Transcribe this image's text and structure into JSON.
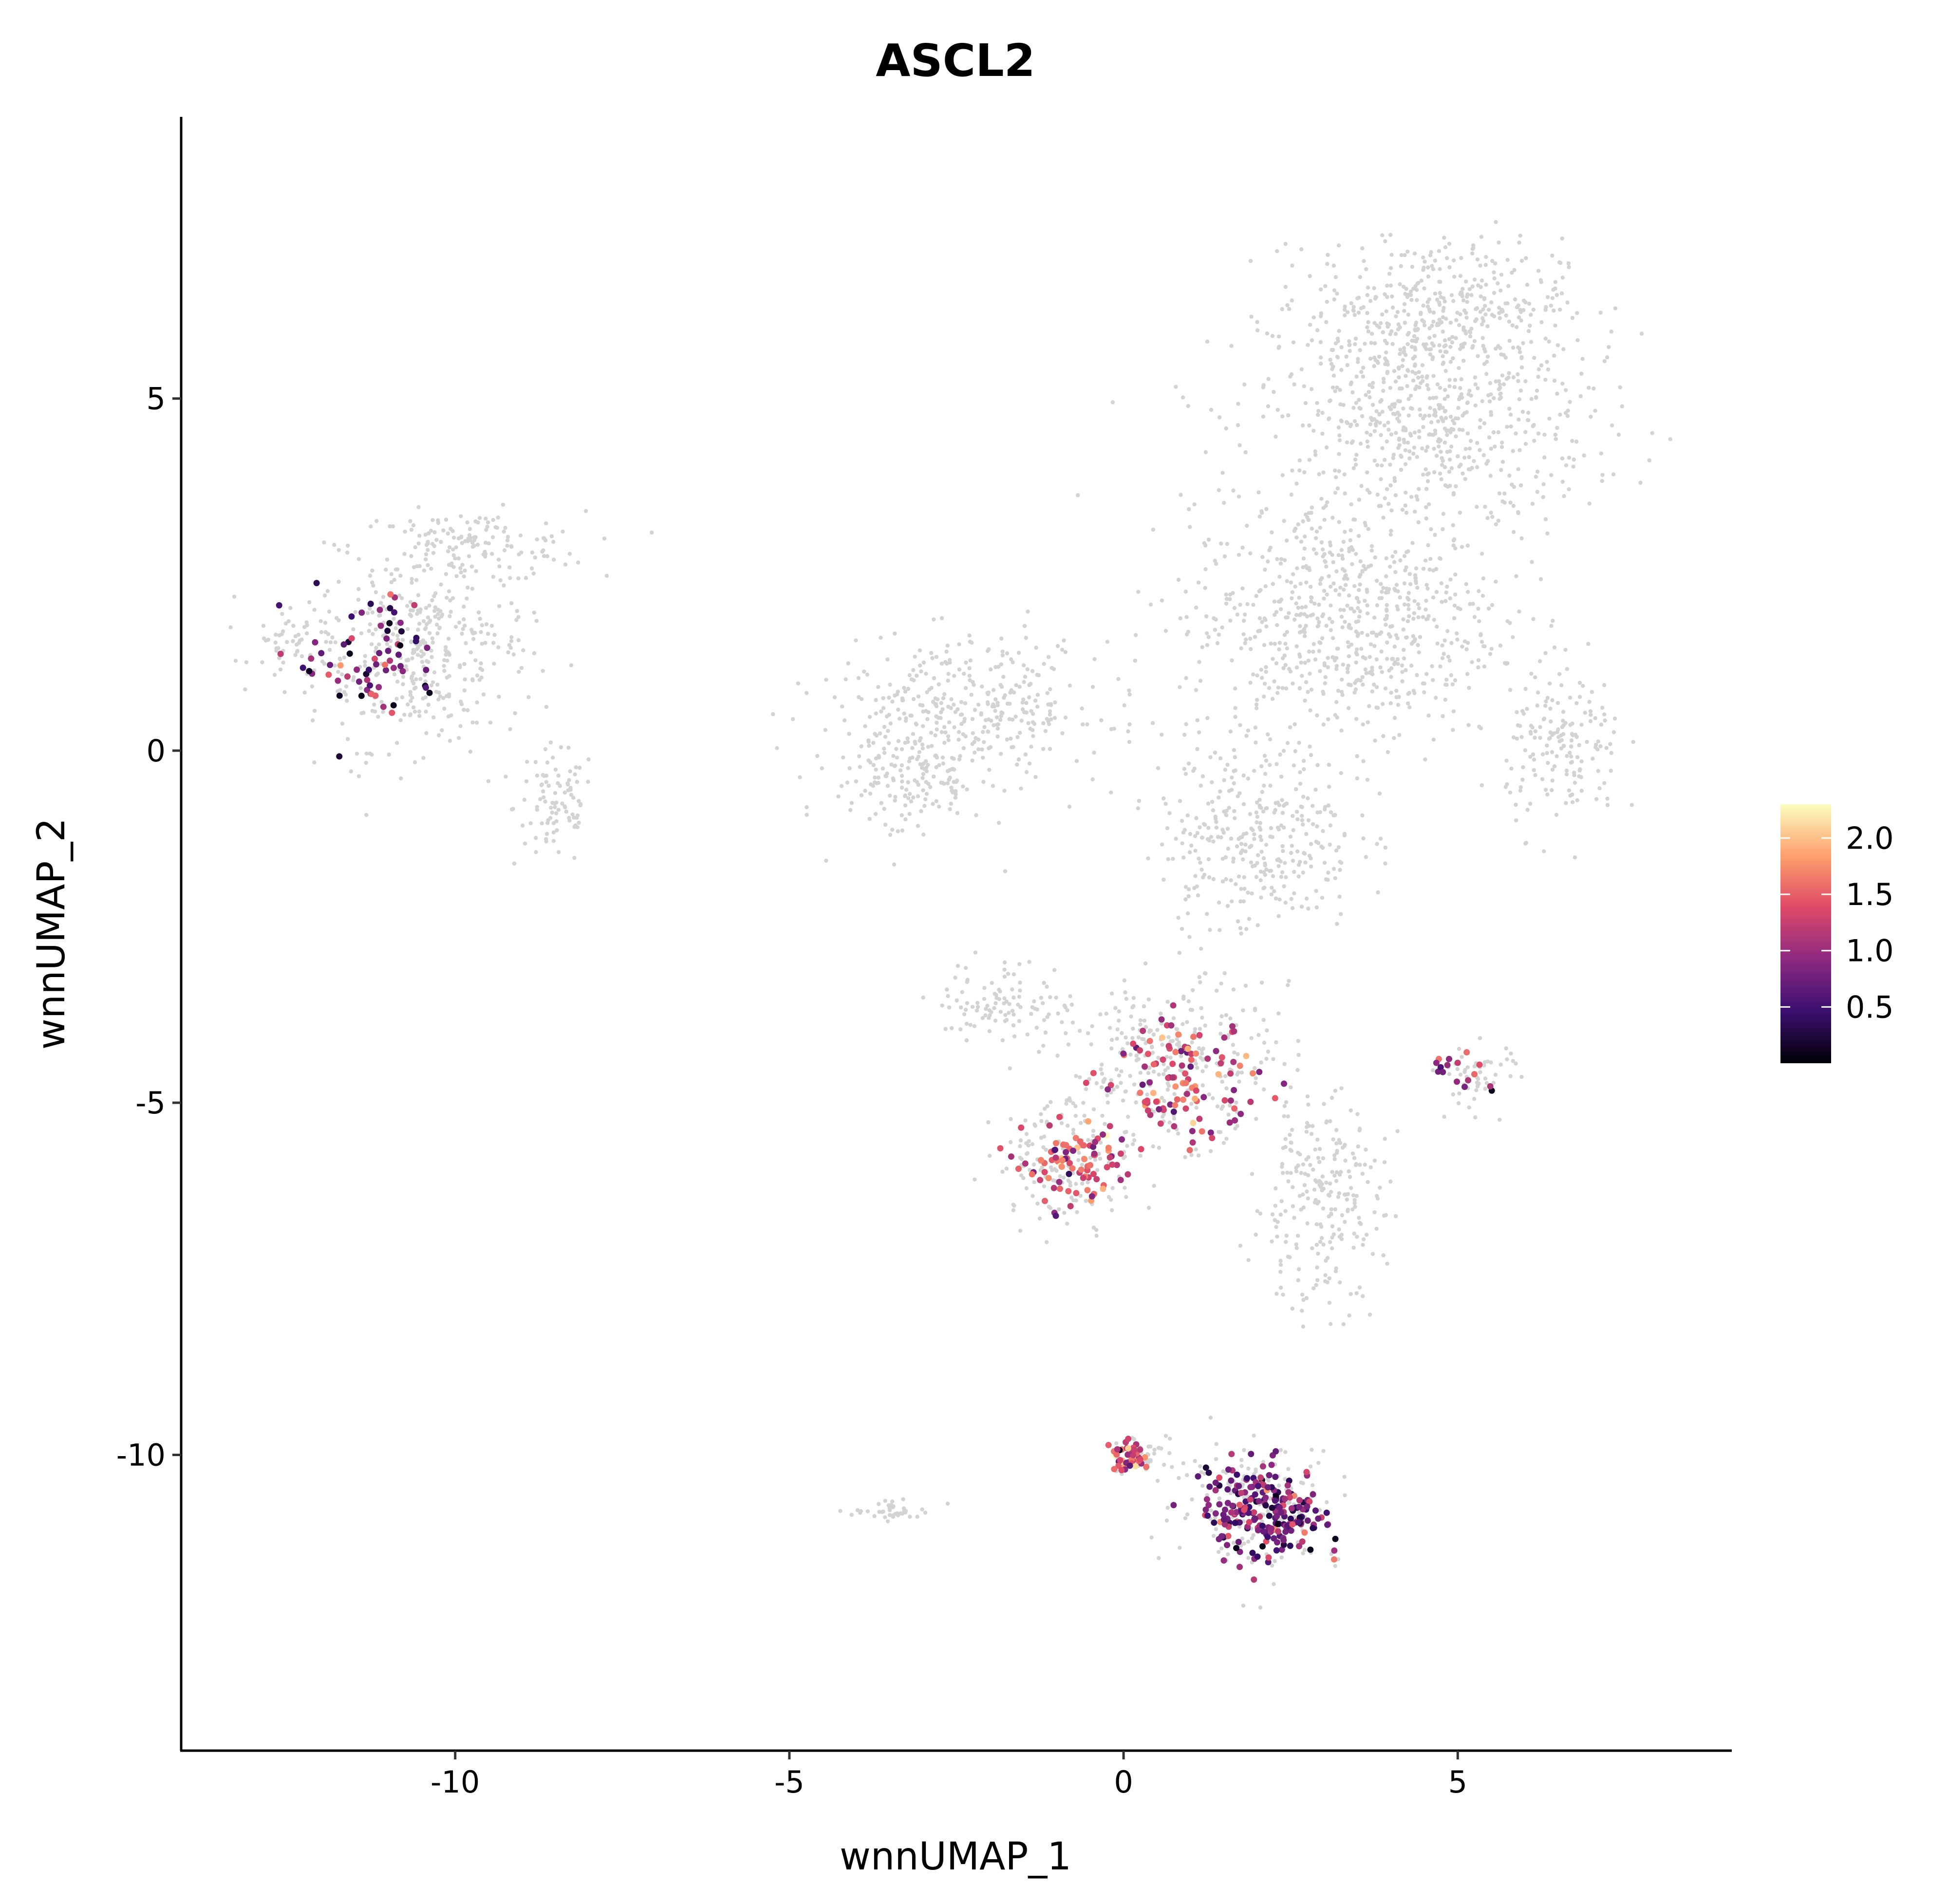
{
  "chart_data": {
    "type": "scatter",
    "title": "ASCL2",
    "xlabel": "wnnUMAP_1",
    "ylabel": "wnnUMAP_2",
    "xlim": [
      -14.1,
      9.1
    ],
    "ylim": [
      -14.2,
      9.0
    ],
    "x_ticks": [
      -10,
      -5,
      0,
      5
    ],
    "y_ticks": [
      5,
      0,
      -5,
      -10
    ],
    "x_tick_labels": [
      "-10",
      "-5",
      "0",
      "5"
    ],
    "y_tick_labels": [
      "5",
      "0",
      "-5",
      "-10"
    ],
    "grid": false,
    "legend_position": "right",
    "background_point_color": "#d3d3d3",
    "colorbar": {
      "range": [
        0.0,
        2.3
      ],
      "ticks": [
        2.0,
        1.5,
        1.0,
        0.5
      ],
      "tick_labels": [
        "2.0",
        "1.5",
        "1.0",
        "0.5"
      ],
      "colormap": "magma",
      "colors": [
        "#000004",
        "#3b0f70",
        "#8c2981",
        "#de4968",
        "#fe9f6d",
        "#fcfdbf"
      ]
    },
    "background_regions": [
      {
        "name": "left-cluster",
        "cx": -10.5,
        "cy": 1.4,
        "sx": 1.3,
        "sy": 1.1
      },
      {
        "name": "left-cluster-tail",
        "cx": -8.5,
        "cy": -0.8,
        "sx": 0.5,
        "sy": 0.7
      },
      {
        "name": "left-cluster-tip",
        "cx": -12.3,
        "cy": 1.5,
        "sx": 0.6,
        "sy": 0.4
      },
      {
        "name": "left-cluster-top",
        "cx": -9.8,
        "cy": 2.9,
        "sx": 1.4,
        "sy": 0.4
      },
      {
        "name": "top-right-blob",
        "cx": 4.5,
        "cy": 4.8,
        "sx": 2.0,
        "sy": 1.5
      },
      {
        "name": "top-right-blob-top",
        "cx": 4.7,
        "cy": 6.4,
        "sx": 1.5,
        "sy": 0.7
      },
      {
        "name": "upper-body",
        "cx": 3.3,
        "cy": 1.8,
        "sx": 1.9,
        "sy": 1.4
      },
      {
        "name": "middle-body",
        "cx": 2.0,
        "cy": -1.2,
        "sx": 1.2,
        "sy": 1.1
      },
      {
        "name": "right-lobe",
        "cx": 6.6,
        "cy": 0.0,
        "sx": 0.7,
        "sy": 0.9
      },
      {
        "name": "left-wing",
        "cx": -2.3,
        "cy": 0.6,
        "sx": 1.7,
        "sy": 0.8
      },
      {
        "name": "left-wing-low",
        "cx": -3.2,
        "cy": -0.4,
        "sx": 0.9,
        "sy": 0.7
      },
      {
        "name": "branch",
        "cx": 0.7,
        "cy": -4.4,
        "sx": 1.2,
        "sy": 0.9
      },
      {
        "name": "lower-spur",
        "cx": -0.8,
        "cy": -5.8,
        "sx": 0.9,
        "sy": 0.7
      },
      {
        "name": "left-arm",
        "cx": -1.8,
        "cy": -3.6,
        "sx": 0.8,
        "sy": 0.5
      },
      {
        "name": "stalk",
        "cx": 2.9,
        "cy": -6.4,
        "sx": 0.8,
        "sy": 1.2
      },
      {
        "name": "right-arm",
        "cx": 5.3,
        "cy": -4.6,
        "sx": 0.5,
        "sy": 0.4
      },
      {
        "name": "bottom-cluster",
        "cx": 2.0,
        "cy": -10.7,
        "sx": 1.0,
        "sy": 0.7
      },
      {
        "name": "bottom-cluster-left",
        "cx": 0.3,
        "cy": -10.0,
        "sx": 0.4,
        "sy": 0.25
      },
      {
        "name": "small-island",
        "cx": -3.4,
        "cy": -10.8,
        "sx": 0.5,
        "sy": 0.1
      }
    ],
    "expression_regions": [
      {
        "name": "left-cluster",
        "cx": -11.3,
        "cy": 1.3,
        "sx": 1.0,
        "sy": 0.9,
        "count": 70,
        "mean": 0.75
      },
      {
        "name": "branch-band",
        "cx": 0.9,
        "cy": -4.7,
        "sx": 1.0,
        "sy": 0.7,
        "count": 110,
        "mean": 1.3
      },
      {
        "name": "lower-spur",
        "cx": -0.7,
        "cy": -5.9,
        "sx": 0.7,
        "sy": 0.6,
        "count": 90,
        "mean": 1.3
      },
      {
        "name": "bottom-cluster",
        "cx": 2.1,
        "cy": -10.8,
        "sx": 0.8,
        "sy": 0.6,
        "count": 230,
        "mean": 0.8
      },
      {
        "name": "bottom-cluster-left",
        "cx": 0.1,
        "cy": -10.0,
        "sx": 0.25,
        "sy": 0.2,
        "count": 45,
        "mean": 1.3
      },
      {
        "name": "right-arm",
        "cx": 5.0,
        "cy": -4.6,
        "sx": 0.4,
        "sy": 0.3,
        "count": 16,
        "mean": 0.9
      }
    ]
  }
}
